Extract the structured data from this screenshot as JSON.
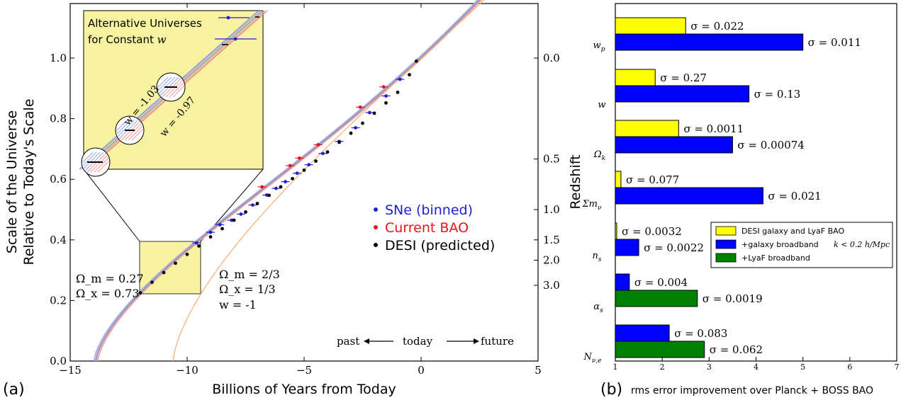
{
  "panel_a": {
    "panel_label": "(a)",
    "inset_title_line1": "Alternative Universes",
    "inset_title_line2": "for Constant",
    "inset_title_var": "w",
    "inset_w1": "w = -1.03",
    "inset_w2": "w = -0.97",
    "legend": [
      {
        "label": "SNe (binned)",
        "color": "#1f1fd6"
      },
      {
        "label": "Current BAO",
        "color": "#e8141a"
      },
      {
        "label": "DESI (predicted)",
        "color": "#000000"
      }
    ],
    "model1": {
      "line1": "Ω_m = 0.27",
      "line2": "Ω_x = 0.73"
    },
    "model2": {
      "line1": "Ω_m = 2/3",
      "line2": "Ω_x = 1/3",
      "line3": "w = -1"
    },
    "arrow_past": "past",
    "arrow_today": "today",
    "arrow_future": "future"
  },
  "panel_b": {
    "panel_label": "(b)",
    "legend": [
      {
        "label": "DESI galaxy and LyaF BAO",
        "color": "#ffff00"
      },
      {
        "label": "+galaxy broadband",
        "extra": "k < 0.2 h/Mpc",
        "color": "#0000ff"
      },
      {
        "label": "+LyaF broadband",
        "color": "#008000"
      }
    ]
  },
  "chart_data": [
    {
      "type": "line",
      "title": "",
      "xlabel": "Billions of Years from Today",
      "ylabel": "Scale of the Universe\nRelative to Today's Scale",
      "y2label": "Redshift",
      "xlim": [
        -15,
        5
      ],
      "ylim": [
        0.0,
        1.18
      ],
      "xticks": [
        -15,
        -10,
        -5,
        0,
        5
      ],
      "xtick_labels": [
        "−15",
        "−10",
        "−5",
        "0",
        "5"
      ],
      "yticks": [
        0.0,
        0.2,
        0.4,
        0.6,
        0.8,
        1.0
      ],
      "ytick_labels": [
        "0.0",
        "0.2",
        "0.4",
        "0.6",
        "0.8",
        "1.0"
      ],
      "redshift_ticks": [
        {
          "label": "0.0",
          "a": 1.0
        },
        {
          "label": "0.5",
          "a": 0.667
        },
        {
          "label": "1.0",
          "a": 0.5
        },
        {
          "label": "1.5",
          "a": 0.4
        },
        {
          "label": "2.0",
          "a": 0.333
        },
        {
          "label": "3.0",
          "a": 0.25
        }
      ],
      "series": [
        {
          "name": "SNe (binned)",
          "x": [
            -9.6,
            -9.0,
            -8.6,
            -8.1,
            -7.7,
            -7.2,
            -6.6,
            -6.2,
            -5.8,
            -5.3,
            -4.8,
            -4.2,
            -3.5,
            -2.8,
            -2.2,
            -1.5,
            -0.9
          ],
          "y": [
            0.39,
            0.425,
            0.45,
            0.465,
            0.485,
            0.515,
            0.548,
            0.57,
            0.592,
            0.62,
            0.648,
            0.685,
            0.725,
            0.77,
            0.82,
            0.875,
            0.93
          ]
        },
        {
          "name": "Current BAO",
          "x": [
            -6.8,
            -5.6,
            -5.2,
            -4.4,
            -2.6,
            -1.6
          ],
          "y": [
            0.575,
            0.645,
            0.67,
            0.714,
            0.838,
            0.905
          ]
        },
        {
          "name": "DESI (predicted)",
          "x": [
            -12.0,
            -11.5,
            -11.0,
            -10.5,
            -10.0,
            -9.5,
            -9.0,
            -8.5,
            -8.0,
            -7.5,
            -7.0,
            -6.5,
            -6.0,
            -5.5,
            -5.0,
            -4.5,
            -4.0,
            -3.5,
            -3.0,
            -2.5,
            -2.0,
            -1.5,
            -1.0,
            -0.5,
            -0.2
          ],
          "y": [
            0.225,
            0.26,
            0.292,
            0.323,
            0.352,
            0.38,
            0.41,
            0.437,
            0.465,
            0.492,
            0.52,
            0.547,
            0.575,
            0.602,
            0.63,
            0.66,
            0.69,
            0.722,
            0.752,
            0.785,
            0.818,
            0.852,
            0.887,
            0.945,
            0.99
          ]
        }
      ]
    },
    {
      "type": "bar",
      "title": "",
      "xlabel": "rms error improvement over Planck + BOSS BAO",
      "xlim": [
        1,
        7
      ],
      "xticks": [
        1,
        2,
        3,
        4,
        5,
        6,
        7
      ],
      "categories": [
        "w_p",
        "w",
        "Ω_k",
        "Σm_ν",
        "n_s",
        "α_s",
        "N_ν,e"
      ],
      "series": [
        {
          "name": "DESI galaxy and LyaF BAO",
          "values": [
            2.5,
            1.85,
            2.35,
            1.12,
            1.03,
            null,
            null
          ],
          "labels": [
            "σ = 0.022",
            "σ = 0.27",
            "σ = 0.0011",
            "σ = 0.077",
            "σ = 0.0032",
            "",
            ""
          ]
        },
        {
          "name": "+galaxy broadband k < 0.2 h/Mpc",
          "values": [
            5.0,
            3.85,
            3.5,
            4.15,
            1.5,
            1.3,
            2.15
          ],
          "labels": [
            "σ = 0.011",
            "σ = 0.13",
            "σ = 0.00074",
            "σ = 0.021",
            "σ = 0.0022",
            "σ = 0.004",
            "σ = 0.083"
          ]
        },
        {
          "name": "+LyaF broadband",
          "values": [
            null,
            null,
            null,
            null,
            null,
            2.75,
            2.9
          ],
          "labels": [
            "",
            "",
            "",
            "",
            "",
            "σ = 0.0019",
            "σ = 0.062"
          ]
        }
      ]
    }
  ]
}
